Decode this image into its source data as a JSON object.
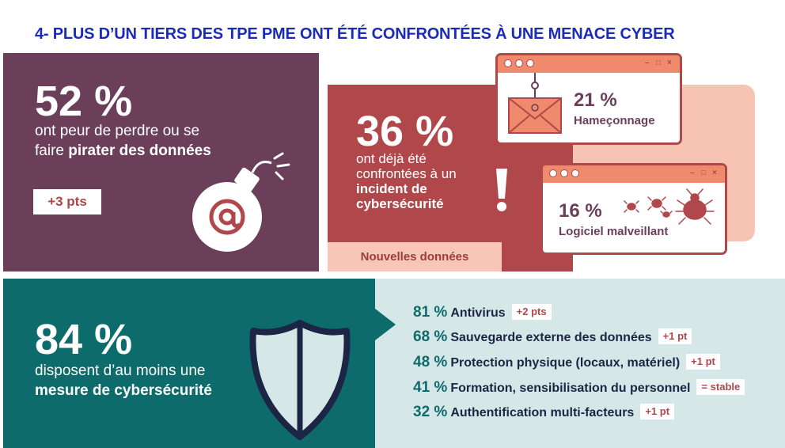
{
  "title": "4- PLUS D’UN TIERS DES TPE PME ONT ÉTÉ CONFRONTÉES À UNE MENACE CYBER",
  "panel_fear": {
    "percent": "52 %",
    "line1": "ont peur de perdre ou se",
    "line2_pre": "faire ",
    "line2_bold": "pirater des données",
    "change": "+3 pts",
    "icon": "bomb-icon"
  },
  "panel_incident": {
    "percent": "36 %",
    "line1": "ont déjà été",
    "line2": "confrontées à un",
    "bold1": "incident de",
    "bold2": "cybersécurité",
    "new_data": "Nouvelles données",
    "phishing": {
      "percent": "21 %",
      "label": "Hameçonnage",
      "icon": "email-hook-icon"
    },
    "malware": {
      "percent": "16 %",
      "label": "Logiciel malveillant",
      "icon": "bug-icon"
    },
    "window_controls": [
      "–",
      "□",
      "×"
    ]
  },
  "panel_measures": {
    "percent": "84 %",
    "line1": "disposent d’au moins une",
    "bold": "mesure de cybersécurité",
    "icon": "shield-icon",
    "items": [
      {
        "percent": "81 %",
        "label": "Antivirus",
        "change": "+2 pts"
      },
      {
        "percent": "68 %",
        "label": "Sauvegarde externe des données",
        "change": "+1 pt"
      },
      {
        "percent": "48 %",
        "label": "Protection physique (locaux, matériel)",
        "change": "+1 pt"
      },
      {
        "percent": "41 %",
        "label": "Formation, sensibilisation du personnel",
        "change": "= stable"
      },
      {
        "percent": "32 %",
        "label": "Authentification multi-facteurs",
        "change": "+1 pt"
      }
    ]
  },
  "colors": {
    "title_blue": "#1b2bb8",
    "plum": "#6b3f59",
    "brick": "#b0474b",
    "peach": "#f7c4b4",
    "teal": "#0e6b6c",
    "light_teal": "#d6e7e7",
    "salmon": "#ef8a6d"
  }
}
